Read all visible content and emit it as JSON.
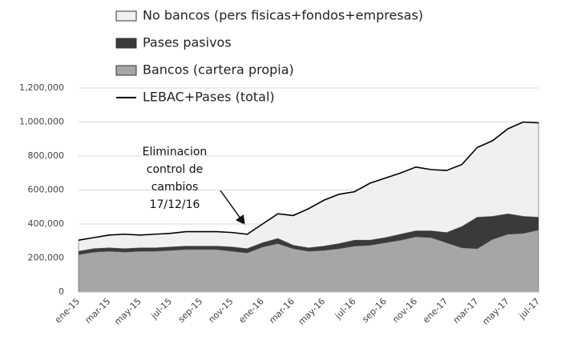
{
  "chart_data": {
    "type": "stacked-area",
    "categories": [
      "ene-15",
      null,
      "mar-15",
      null,
      "may-15",
      null,
      "jul-15",
      null,
      "sep-15",
      null,
      "nov-15",
      null,
      "ene-16",
      null,
      "mar-16",
      null,
      "may-16",
      null,
      "jul-16",
      null,
      "sep-16",
      null,
      "nov-16",
      null,
      "ene-17",
      null,
      "mar-17",
      null,
      "may-17",
      null,
      "jul-17"
    ],
    "series": [
      {
        "name": "No bancos (pers fisicas+fondos+empresas)",
        "color": "#f0f0f0",
        "values": [
          65000,
          65000,
          75000,
          85000,
          75000,
          80000,
          80000,
          85000,
          85000,
          85000,
          85000,
          85000,
          110000,
          145000,
          175000,
          230000,
          270000,
          290000,
          285000,
          335000,
          350000,
          360000,
          375000,
          360000,
          365000,
          365000,
          410000,
          445000,
          500000,
          555000,
          555000
        ]
      },
      {
        "name": "Pases pasivos",
        "color": "#3a3a3a",
        "values": [
          20000,
          20000,
          20000,
          20000,
          20000,
          20000,
          20000,
          20000,
          20000,
          20000,
          25000,
          25000,
          25000,
          30000,
          20000,
          20000,
          25000,
          30000,
          35000,
          30000,
          30000,
          35000,
          35000,
          40000,
          60000,
          125000,
          185000,
          135000,
          120000,
          100000,
          75000
        ]
      },
      {
        "name": "Bancos (cartera propia)",
        "color": "#a6a6a6",
        "values": [
          220000,
          235000,
          240000,
          235000,
          240000,
          240000,
          245000,
          250000,
          250000,
          250000,
          240000,
          230000,
          265000,
          285000,
          255000,
          240000,
          245000,
          255000,
          270000,
          275000,
          290000,
          305000,
          325000,
          320000,
          290000,
          260000,
          255000,
          310000,
          340000,
          345000,
          365000
        ]
      },
      {
        "name": "LEBAC+Pases (total)",
        "color": "#000000",
        "type": "line",
        "values": [
          305000,
          320000,
          335000,
          340000,
          335000,
          340000,
          345000,
          355000,
          355000,
          355000,
          350000,
          340000,
          400000,
          460000,
          450000,
          490000,
          540000,
          575000,
          590000,
          640000,
          670000,
          700000,
          735000,
          720000,
          715000,
          750000,
          850000,
          890000,
          960000,
          1000000,
          995000
        ]
      }
    ],
    "annotation": [
      "Eliminacion",
      "control de",
      "cambios",
      "17/12/16"
    ],
    "ylim": [
      0,
      1200000
    ],
    "yticks": [
      0,
      {
        "value": 200000,
        "label": "200,000"
      },
      {
        "value": 400000,
        "label": "400,000"
      },
      {
        "value": 600000,
        "label": "600,000"
      },
      {
        "value": 800000,
        "label": "800,000"
      },
      {
        "value": 1000000,
        "label": "1,000,000"
      },
      {
        "value": 1200000,
        "label": "1,200,000"
      }
    ],
    "grid": true
  }
}
